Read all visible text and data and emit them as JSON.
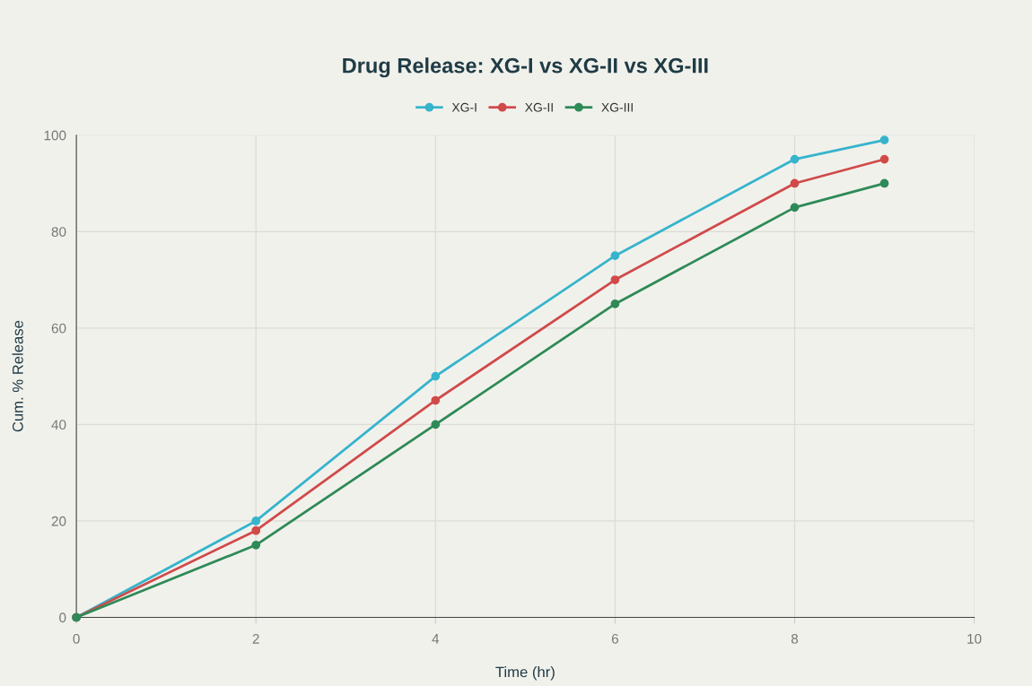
{
  "chart_data": {
    "type": "line",
    "title": "Drug Release: XG-I vs XG-II vs XG-III",
    "xlabel": "Time (hr)",
    "ylabel": "Cum. % Release",
    "x": [
      0,
      2,
      4,
      6,
      8,
      9
    ],
    "series": [
      {
        "name": "XG-I",
        "color": "#36b4cc",
        "values": [
          0,
          20,
          50,
          75,
          95,
          99
        ]
      },
      {
        "name": "XG-II",
        "color": "#d04a4a",
        "values": [
          0,
          18,
          45,
          70,
          90,
          95
        ]
      },
      {
        "name": "XG-III",
        "color": "#2e8a57",
        "values": [
          0,
          15,
          40,
          65,
          85,
          90
        ]
      }
    ],
    "xlim": [
      0,
      10
    ],
    "xticks": [
      0,
      2,
      4,
      6,
      8,
      10
    ],
    "ylim": [
      0,
      100
    ],
    "yticks": [
      0,
      20,
      40,
      60,
      80,
      100
    ],
    "grid": true,
    "legend": "top",
    "marker": "circle",
    "line_style": "solid"
  }
}
